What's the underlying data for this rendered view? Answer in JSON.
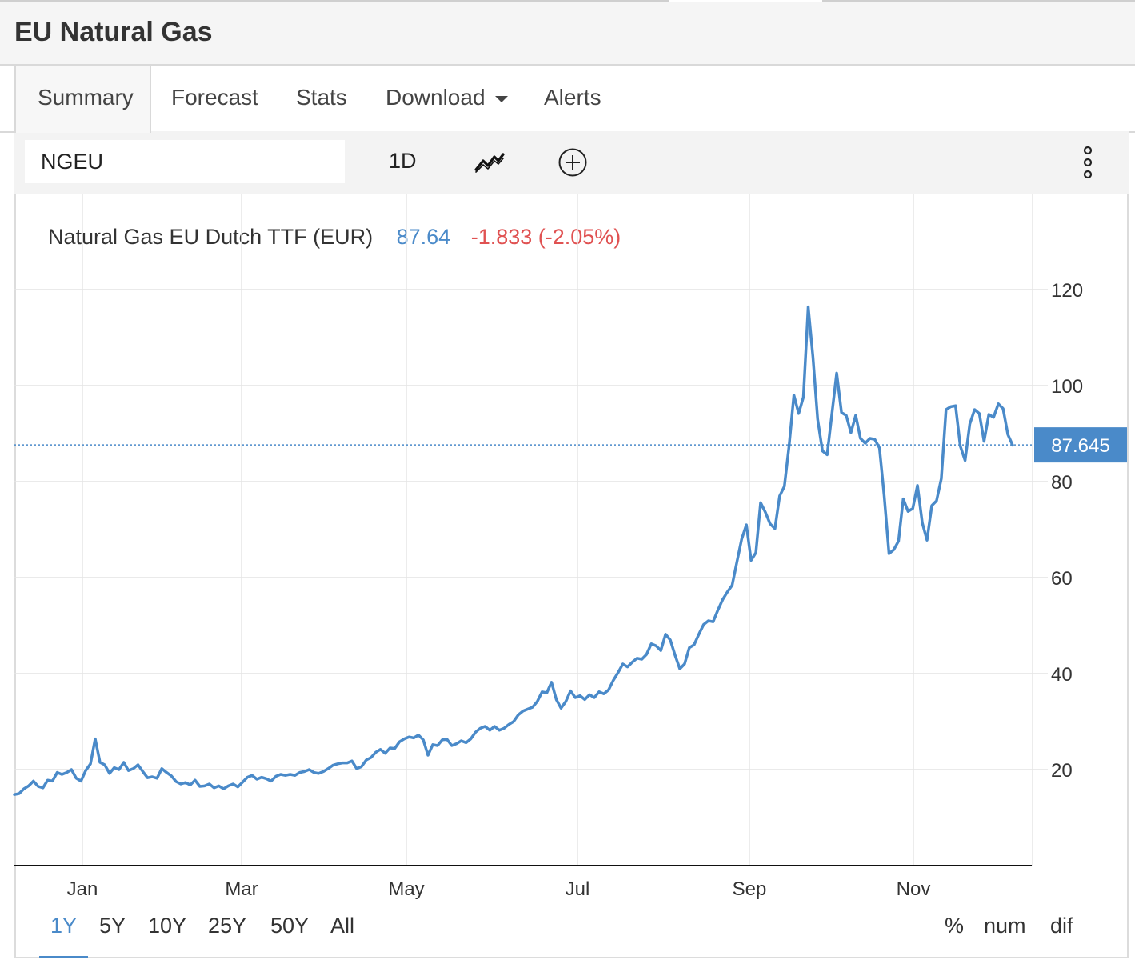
{
  "header": {
    "title": "EU Natural Gas"
  },
  "tabs": [
    {
      "label": "Summary",
      "active": true
    },
    {
      "label": "Forecast"
    },
    {
      "label": "Stats"
    },
    {
      "label": "Download"
    },
    {
      "label": "Alerts"
    }
  ],
  "toolbar": {
    "symbol_value": "NGEU",
    "interval": "1D",
    "chart_type_icon": "line-chart-icon",
    "add_icon": "plus-circle-icon",
    "menu_icon": "more-vertical-icon"
  },
  "legend": {
    "name": "Natural Gas EU Dutch TTF (EUR)",
    "price": "87.64",
    "change": "-1.833 (-2.05%)"
  },
  "chart_data": {
    "type": "line",
    "title": "",
    "xlabel": "",
    "ylabel": "",
    "x_ticks": [
      "Jan",
      "Mar",
      "May",
      "Jul",
      "Sep",
      "Nov"
    ],
    "y_ticks": [
      20,
      40,
      60,
      80,
      100,
      120
    ],
    "ylim": [
      0,
      140
    ],
    "grid": true,
    "last_value_label": "87.645",
    "line_color": "#4a8ac9",
    "series": [
      {
        "values": [
          14.8,
          15.0,
          16.0,
          16.6,
          17.6,
          16.5,
          16.2,
          17.8,
          17.6,
          19.4,
          19.0,
          19.4,
          20.0,
          18.2,
          17.6,
          19.8,
          21.2,
          26.4,
          21.5,
          21.0,
          19.2,
          20.4,
          20.0,
          21.5,
          19.8,
          20.2,
          21.0,
          19.6,
          18.3,
          18.5,
          18.2,
          20.2,
          19.4,
          18.7,
          17.5,
          17.0,
          17.3,
          16.8,
          17.8,
          16.5,
          16.6,
          17.0,
          16.2,
          16.6,
          16.0,
          16.6,
          17.0,
          16.4,
          17.4,
          18.4,
          18.8,
          18.0,
          18.4,
          18.1,
          17.6,
          18.6,
          19.0,
          18.8,
          19.0,
          18.8,
          19.4,
          19.6,
          20.0,
          19.4,
          19.2,
          19.6,
          20.2,
          20.9,
          21.2,
          21.4,
          21.4,
          21.8,
          20.2,
          20.6,
          22.0,
          22.5,
          23.6,
          24.2,
          23.4,
          24.5,
          24.4,
          25.8,
          26.4,
          26.8,
          26.6,
          27.2,
          26.2,
          23.0,
          25.2,
          25.0,
          26.2,
          26.3,
          25.0,
          25.4,
          26.0,
          25.6,
          26.4,
          27.8,
          28.6,
          29.0,
          28.2,
          29.0,
          28.2,
          28.6,
          29.4,
          30.0,
          31.4,
          32.2,
          32.6,
          33.0,
          34.2,
          36.2,
          36.0,
          38.2,
          34.6,
          32.8,
          34.2,
          36.4,
          35.0,
          35.4,
          34.6,
          35.6,
          35.0,
          36.2,
          35.8,
          36.6,
          38.6,
          40.2,
          42.0,
          41.4,
          42.4,
          43.2,
          43.0,
          44.0,
          46.2,
          45.8,
          44.8,
          48.2,
          47.0,
          43.8,
          41.0,
          42.0,
          45.4,
          46.0,
          48.2,
          50.2,
          51.0,
          50.8,
          53.2,
          55.4,
          57.0,
          58.4,
          63.2,
          68.0,
          71.0,
          63.6,
          65.2,
          75.6,
          73.6,
          71.2,
          70.2,
          77.0,
          79.0,
          87.6,
          98.0,
          94.2,
          97.6,
          116.4,
          106.0,
          93.0,
          86.4,
          85.6,
          94.2,
          102.6,
          94.4,
          93.8,
          90.2,
          93.8,
          89.0,
          88.0,
          89.0,
          88.8,
          87.0,
          77.0,
          65.0,
          65.8,
          67.6,
          76.4,
          73.8,
          74.4,
          79.2,
          71.4,
          67.8,
          75.0,
          76.0,
          80.6,
          95.0,
          95.6,
          95.8,
          87.4,
          84.4,
          92.0,
          95.0,
          94.2,
          88.4,
          94.0,
          93.4,
          96.2,
          95.2,
          89.8,
          87.6
        ]
      }
    ]
  },
  "ranges": [
    {
      "label": "1Y",
      "active": true
    },
    {
      "label": "5Y"
    },
    {
      "label": "10Y"
    },
    {
      "label": "25Y"
    },
    {
      "label": "50Y"
    },
    {
      "label": "All"
    }
  ],
  "modes": [
    "%",
    "num",
    "dif"
  ]
}
